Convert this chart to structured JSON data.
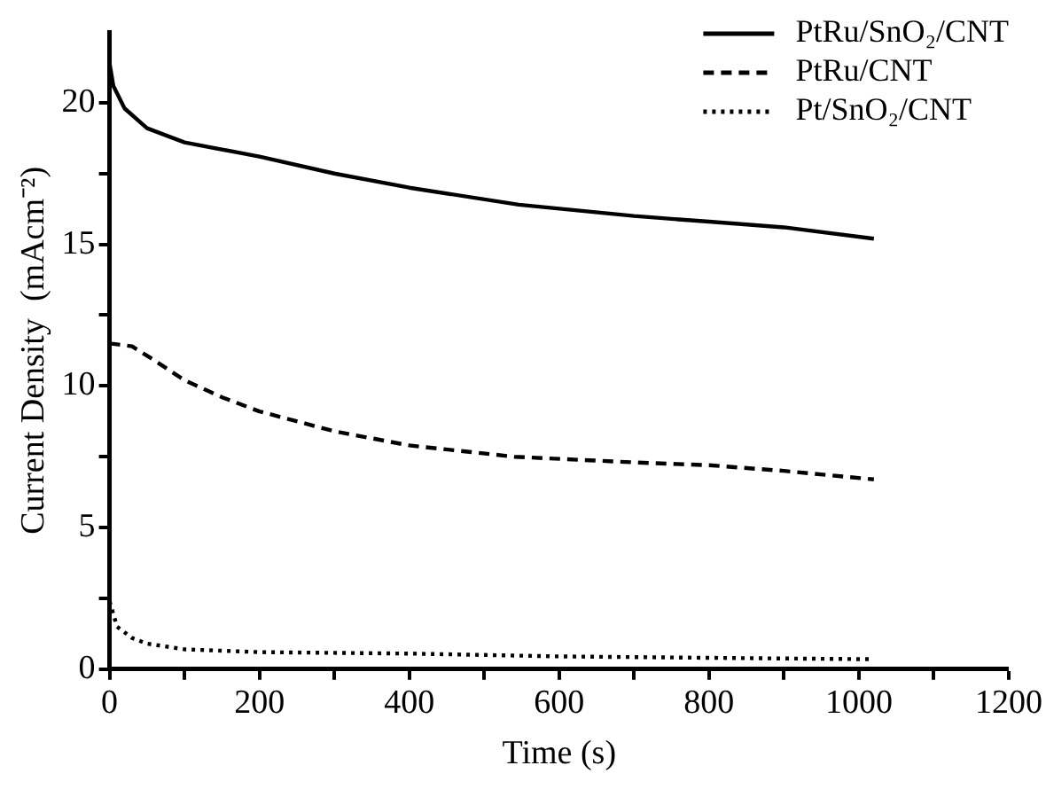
{
  "chart_data": {
    "type": "line",
    "xlabel": "Time (s)",
    "ylabel": "Current Density  (mAcm⁻²)",
    "xlim": [
      0,
      1200
    ],
    "xticks": [
      0,
      {
        "value": 100,
        "label": null
      },
      200,
      {
        "value": 300,
        "label": null
      },
      400,
      {
        "value": 500,
        "label": null
      },
      600,
      {
        "value": 700,
        "label": null
      },
      800,
      {
        "value": 900,
        "label": null
      },
      1000,
      {
        "value": 1100,
        "label": null
      },
      1200
    ],
    "ylim": [
      0,
      22.5
    ],
    "yticks": [
      0,
      {
        "value": 2.5,
        "label": null
      },
      5,
      {
        "value": 7.5,
        "label": null
      },
      10,
      {
        "value": 12.5,
        "label": null
      },
      15,
      {
        "value": 17.5,
        "label": null
      },
      20
    ],
    "grid": false,
    "legend": "top right",
    "marker": "none",
    "series": [
      {
        "name": "PtRu/SnO₂/CNT",
        "color": "#000000",
        "line_style": "solid",
        "x": [
          0,
          5,
          20,
          50,
          100,
          200,
          300,
          400,
          546,
          700,
          800,
          900,
          1020
        ],
        "values": [
          21.4,
          20.6,
          19.8,
          19.1,
          18.6,
          18.1,
          17.5,
          17.0,
          16.4,
          16.0,
          15.8,
          15.6,
          15.2
        ]
      },
      {
        "name": "PtRu/CNT",
        "color": "#000000",
        "line_style": "dashed",
        "x": [
          0,
          30,
          60,
          100,
          150,
          200,
          300,
          400,
          540,
          700,
          800,
          900,
          1020
        ],
        "values": [
          11.5,
          11.4,
          10.9,
          10.2,
          9.6,
          9.1,
          8.4,
          7.9,
          7.5,
          7.3,
          7.2,
          7.0,
          6.7
        ]
      },
      {
        "name": "Pt/SnO₂/CNT",
        "color": "#000000",
        "line_style": "dotted",
        "x": [
          0,
          10,
          30,
          50,
          100,
          200,
          400,
          600,
          800,
          1020
        ],
        "values": [
          2.4,
          1.5,
          1.1,
          0.9,
          0.7,
          0.6,
          0.55,
          0.45,
          0.4,
          0.35
        ]
      }
    ]
  }
}
